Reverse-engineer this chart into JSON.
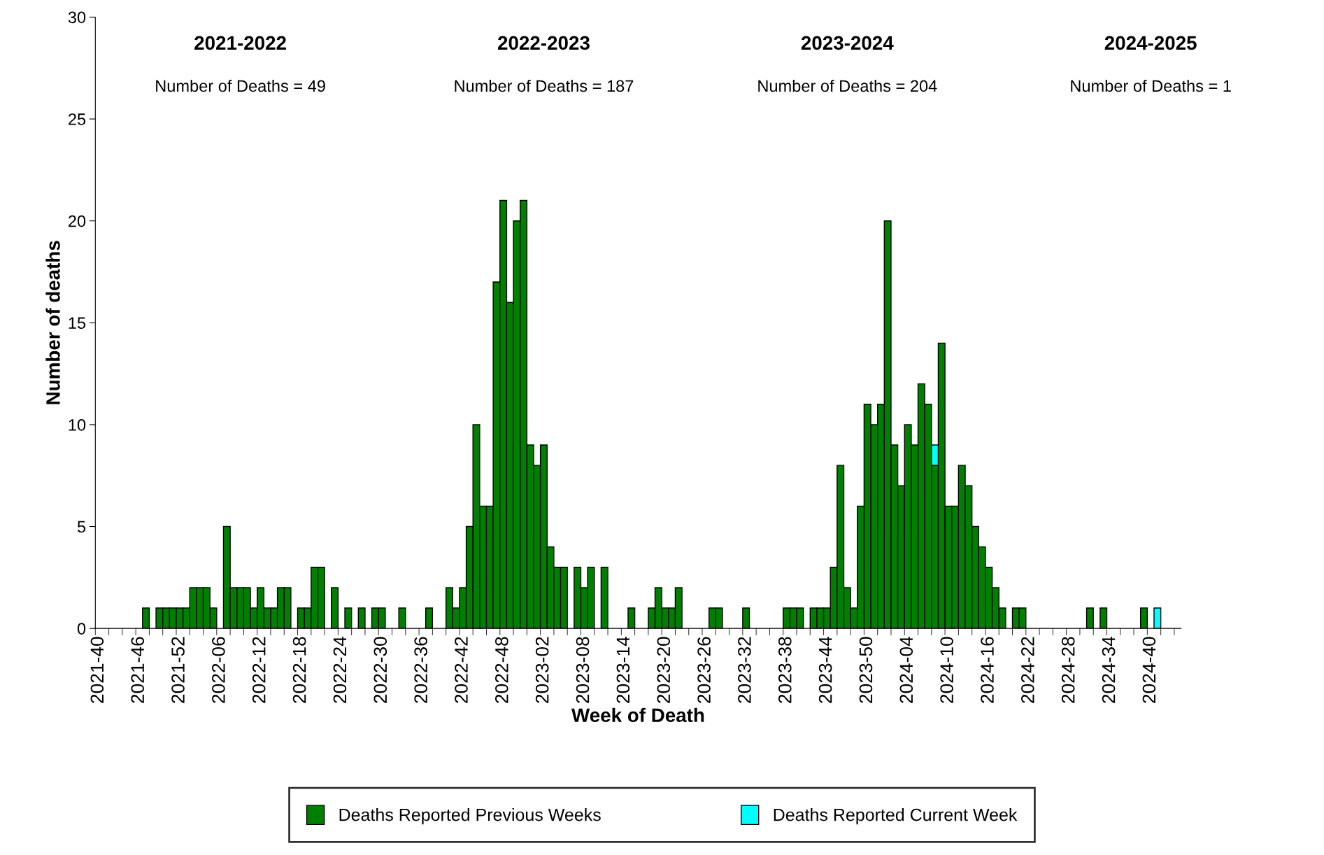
{
  "chart_data": {
    "type": "bar",
    "stacked": true,
    "xlabel": "Week of Death",
    "ylabel": "Number of deaths",
    "annotations": [
      "2021-2022",
      "Number of Deaths = 49",
      "2022-2023",
      "Number of Deaths = 187",
      "2023-2024",
      "Number of Deaths = 204",
      "2024-2025",
      "Number of Deaths = 1"
    ],
    "categories": [
      "2021-40",
      null,
      null,
      null,
      null,
      null,
      "2021-46",
      null,
      null,
      null,
      null,
      null,
      "2021-52",
      null,
      null,
      null,
      null,
      null,
      "2022-06",
      null,
      null,
      null,
      null,
      null,
      "2022-12",
      null,
      null,
      null,
      null,
      null,
      "2022-18",
      null,
      null,
      null,
      null,
      null,
      "2022-24",
      null,
      null,
      null,
      null,
      null,
      "2022-30",
      null,
      null,
      null,
      null,
      null,
      "2022-36",
      null,
      null,
      null,
      null,
      null,
      "2022-42",
      null,
      null,
      null,
      null,
      null,
      "2022-48",
      null,
      null,
      null,
      null,
      null,
      "2023-02",
      null,
      null,
      null,
      null,
      null,
      "2023-08",
      null,
      null,
      null,
      null,
      null,
      "2023-14",
      null,
      null,
      null,
      null,
      null,
      "2023-20",
      null,
      null,
      null,
      null,
      null,
      "2023-26",
      null,
      null,
      null,
      null,
      null,
      "2023-32",
      null,
      null,
      null,
      null,
      null,
      "2023-38",
      null,
      null,
      null,
      null,
      null,
      "2023-44",
      null,
      null,
      null,
      null,
      null,
      "2023-50",
      null,
      null,
      null,
      null,
      null,
      "2024-04",
      null,
      null,
      null,
      null,
      null,
      "2024-10",
      null,
      null,
      null,
      null,
      null,
      "2024-16",
      null,
      null,
      null,
      null,
      null,
      "2024-22",
      null,
      null,
      null,
      null,
      null,
      "2024-28",
      null,
      null,
      null,
      null,
      null,
      "2024-34",
      null,
      null,
      null,
      null,
      null,
      "2024-40",
      null,
      null,
      null,
      null
    ],
    "series": [
      {
        "name": "Deaths Reported Previous Weeks",
        "color": "#008000",
        "values": [
          null,
          null,
          null,
          null,
          null,
          null,
          null,
          1,
          null,
          1,
          1,
          1,
          1,
          1,
          2,
          2,
          2,
          1,
          null,
          5,
          2,
          2,
          2,
          1,
          2,
          1,
          1,
          2,
          2,
          null,
          1,
          1,
          3,
          3,
          null,
          2,
          null,
          1,
          null,
          1,
          null,
          1,
          1,
          null,
          null,
          1,
          null,
          null,
          null,
          1,
          null,
          null,
          2,
          1,
          2,
          5,
          10,
          6,
          6,
          17,
          21,
          16,
          20,
          21,
          9,
          8,
          9,
          4,
          3,
          3,
          null,
          3,
          2,
          3,
          null,
          3,
          null,
          null,
          null,
          1,
          null,
          null,
          1,
          2,
          1,
          1,
          2,
          null,
          null,
          null,
          null,
          1,
          1,
          null,
          null,
          null,
          1,
          null,
          null,
          null,
          null,
          null,
          1,
          1,
          1,
          null,
          1,
          1,
          1,
          3,
          8,
          2,
          1,
          6,
          11,
          10,
          11,
          20,
          9,
          7,
          10,
          9,
          12,
          11,
          8,
          14,
          6,
          6,
          8,
          7,
          5,
          4,
          3,
          2,
          1,
          null,
          1,
          1,
          null,
          null,
          null,
          null,
          null,
          null,
          null,
          null,
          null,
          1,
          null,
          1,
          null,
          null,
          null,
          null,
          null,
          1,
          null,
          null,
          null,
          null,
          null
        ]
      },
      {
        "name": "Deaths Reported Current Week",
        "color": "#00ffff",
        "values": [
          null,
          null,
          null,
          null,
          null,
          null,
          null,
          null,
          null,
          null,
          null,
          null,
          null,
          null,
          null,
          null,
          null,
          null,
          null,
          null,
          null,
          null,
          null,
          null,
          null,
          null,
          null,
          null,
          null,
          null,
          null,
          null,
          null,
          null,
          null,
          null,
          null,
          null,
          null,
          null,
          null,
          null,
          null,
          null,
          null,
          null,
          null,
          null,
          null,
          null,
          null,
          null,
          null,
          null,
          null,
          null,
          null,
          null,
          null,
          null,
          null,
          null,
          null,
          null,
          null,
          null,
          null,
          null,
          null,
          null,
          null,
          null,
          null,
          null,
          null,
          null,
          null,
          null,
          null,
          null,
          null,
          null,
          null,
          null,
          null,
          null,
          null,
          null,
          null,
          null,
          null,
          null,
          null,
          null,
          null,
          null,
          null,
          null,
          null,
          null,
          null,
          null,
          null,
          null,
          null,
          null,
          null,
          null,
          null,
          null,
          null,
          null,
          null,
          null,
          null,
          null,
          null,
          null,
          null,
          null,
          null,
          null,
          null,
          null,
          1,
          null,
          null,
          null,
          null,
          null,
          null,
          null,
          null,
          null,
          null,
          null,
          null,
          null,
          null,
          null,
          null,
          null,
          null,
          null,
          null,
          null,
          null,
          null,
          null,
          null,
          null,
          null,
          null,
          null,
          null,
          null,
          null,
          1,
          null,
          null,
          null
        ]
      }
    ],
    "ylim": [
      0,
      30
    ],
    "yticks": [
      0,
      5,
      10,
      15,
      20,
      25,
      30
    ],
    "legend": "bottom"
  }
}
